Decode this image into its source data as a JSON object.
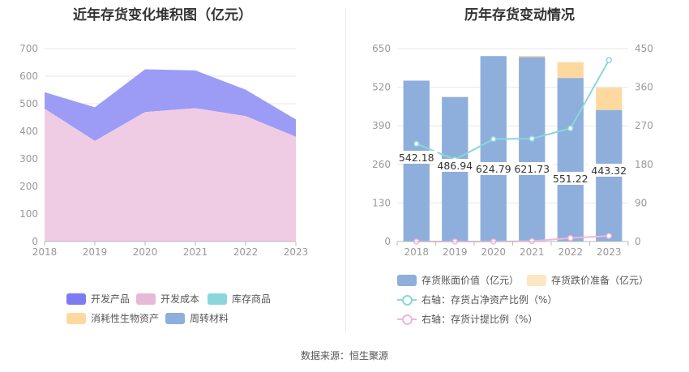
{
  "left_chart": {
    "title": "近年存货变化堆积图（亿元）"
  },
  "right_chart": {
    "title": "历年存货变动情况"
  },
  "source": "数据来源：恒生聚源",
  "colors": {
    "developed_products": "#9c9cf7",
    "development_cost": "#efcce4",
    "bar_book": "#8eaedc",
    "bar_provision": "#fdd9a0",
    "line_net_ratio": "#8bd6dc",
    "line_provision_ratio": "#efb6dc"
  },
  "legend_left": [
    {
      "label": "开发产品",
      "color": "#7c7cf2"
    },
    {
      "label": "开发成本",
      "color": "#e8b8d8"
    },
    {
      "label": "库存商品",
      "color": "#8bd6dc"
    },
    {
      "label": "消耗性生物资产",
      "color": "#fdd9a0"
    },
    {
      "label": "周转材料",
      "color": "#8eaedc"
    }
  ],
  "legend_right": [
    {
      "label": "存货账面价值（亿元）",
      "color": "#8eaedc",
      "kind": "bar"
    },
    {
      "label": "存货跌价准备（亿元）",
      "color": "#fde6c4",
      "kind": "bar"
    },
    {
      "label": "右轴：存货占净资产比例（%）",
      "color": "#8bd6dc",
      "kind": "line"
    },
    {
      "label": "右轴：存货计提比例（%）",
      "color": "#efb6dc",
      "kind": "line"
    }
  ],
  "chart_data": [
    {
      "type": "area",
      "title": "近年存货变化堆积图（亿元）",
      "x": [
        "2018",
        "2019",
        "2020",
        "2021",
        "2022",
        "2023"
      ],
      "ylim": [
        0,
        700
      ],
      "yticks": [
        0,
        100,
        200,
        300,
        400,
        500,
        600,
        700
      ],
      "series": [
        {
          "name": "开发成本",
          "values": [
            482,
            365,
            470,
            484,
            455,
            380
          ]
        },
        {
          "name": "开发产品",
          "values": [
            60,
            122,
            155,
            137,
            96,
            63
          ]
        }
      ]
    },
    {
      "type": "bar",
      "title": "历年存货变动情况",
      "categories": [
        "2018",
        "2019",
        "2020",
        "2021",
        "2022",
        "2023"
      ],
      "ylim": [
        0,
        650
      ],
      "yticks": [
        0,
        130,
        260,
        390,
        520,
        650
      ],
      "y2lim": [
        0,
        450
      ],
      "y2ticks": [
        0,
        90,
        180,
        270,
        360,
        450
      ],
      "series": [
        {
          "name": "存货账面价值（亿元）",
          "values": [
            542.18,
            486.94,
            624.79,
            621.73,
            551.22,
            443.32
          ]
        },
        {
          "name": "存货跌价准备（亿元）",
          "values": [
            0,
            0,
            0,
            4,
            53,
            75
          ]
        }
      ],
      "labels": [
        "542.18",
        "486.94",
        "624.79",
        "621.73",
        "551.22",
        "443.32"
      ],
      "lines": [
        {
          "name": "右轴：存货占净资产比例（%）",
          "axis": "right",
          "values": [
            228,
            191,
            239,
            240,
            264,
            423
          ]
        },
        {
          "name": "右轴：存货计提比例（%）",
          "axis": "right",
          "values": [
            0,
            0,
            0,
            1,
            8,
            13
          ]
        }
      ]
    }
  ]
}
